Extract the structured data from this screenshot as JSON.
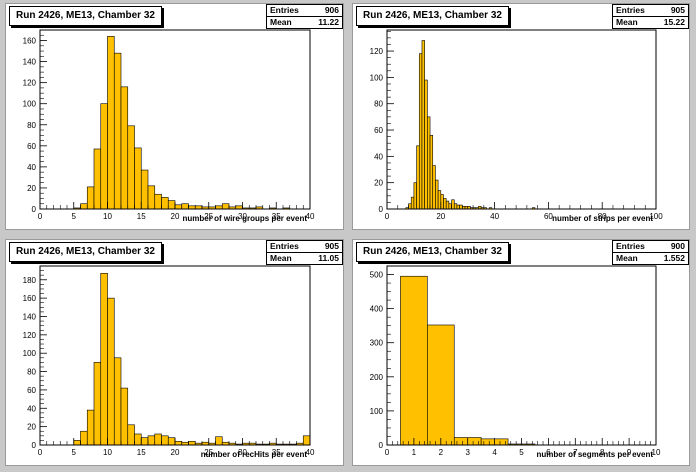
{
  "chart_data": [
    {
      "type": "bar",
      "title": "Run 2426, ME13, Chamber 32",
      "xlabel": "number of wire groups per event",
      "stats": {
        "entries_label": "Entries",
        "entries": "906",
        "mean_label": "Mean",
        "mean": "11.22"
      },
      "xlim": [
        0,
        40
      ],
      "ylim": [
        0,
        170
      ],
      "xticks": [
        0,
        5,
        10,
        15,
        20,
        25,
        30,
        35,
        40
      ],
      "yticks": [
        0,
        20,
        40,
        60,
        80,
        100,
        120,
        140,
        160
      ],
      "bin_start": 0,
      "bin_width": 1,
      "fill": "#ffc000",
      "values": [
        0,
        0,
        0,
        0,
        0,
        1,
        5,
        21,
        57,
        100,
        164,
        148,
        116,
        79,
        58,
        37,
        22,
        14,
        11,
        8,
        4,
        5,
        3,
        3,
        2,
        2,
        3,
        5,
        2,
        3,
        1,
        1,
        2,
        0,
        1,
        0,
        1,
        0,
        0,
        0
      ]
    },
    {
      "type": "bar",
      "title": "Run 2426, ME13, Chamber 32",
      "xlabel": "number of strips per event",
      "stats": {
        "entries_label": "Entries",
        "entries": "905",
        "mean_label": "Mean",
        "mean": "15.22"
      },
      "xlim": [
        0,
        100
      ],
      "ylim": [
        0,
        136
      ],
      "xticks": [
        0,
        20,
        40,
        60,
        80,
        100
      ],
      "yticks": [
        0,
        20,
        40,
        60,
        80,
        100,
        120
      ],
      "bin_start": 0,
      "bin_width": 1,
      "fill": "#ffc000",
      "values": [
        0,
        0,
        0,
        0,
        0,
        0,
        0,
        1,
        4,
        9,
        20,
        48,
        118,
        128,
        98,
        70,
        56,
        33,
        22,
        14,
        11,
        8,
        6,
        4,
        7,
        4,
        3,
        3,
        2,
        2,
        2,
        1,
        1,
        1,
        2,
        1,
        1,
        0,
        1,
        0,
        0,
        0,
        0,
        0,
        0,
        0,
        0,
        0,
        0,
        0,
        0,
        0,
        0,
        0,
        1,
        0,
        0,
        0,
        0,
        0,
        0,
        0,
        0,
        0,
        0,
        0,
        0,
        0,
        0,
        0,
        0,
        0,
        0,
        0,
        0,
        0,
        0,
        0,
        0,
        0,
        0,
        0,
        0,
        0,
        0,
        0,
        0,
        0,
        0,
        0,
        0,
        0,
        0,
        0,
        0,
        0,
        0,
        0,
        0,
        0
      ]
    },
    {
      "type": "bar",
      "title": "Run 2426, ME13, Chamber 32",
      "xlabel": "number of recHits per event",
      "stats": {
        "entries_label": "Entries",
        "entries": "905",
        "mean_label": "Mean",
        "mean": "11.05"
      },
      "xlim": [
        0,
        40
      ],
      "ylim": [
        0,
        195
      ],
      "xticks": [
        0,
        5,
        10,
        15,
        20,
        25,
        30,
        35,
        40
      ],
      "yticks": [
        0,
        20,
        40,
        60,
        80,
        100,
        120,
        140,
        160,
        180
      ],
      "bin_start": 0,
      "bin_width": 1,
      "fill": "#ffc000",
      "values": [
        0,
        0,
        0,
        0,
        0,
        5,
        15,
        38,
        90,
        187,
        160,
        95,
        62,
        22,
        12,
        8,
        10,
        12,
        10,
        8,
        4,
        3,
        4,
        2,
        3,
        2,
        9,
        3,
        2,
        1,
        2,
        2,
        1,
        1,
        2,
        1,
        1,
        1,
        2,
        10
      ]
    },
    {
      "type": "bar",
      "title": "Run 2426, ME13, Chamber 32",
      "xlabel": "number of segments per event",
      "stats": {
        "entries_label": "Entries",
        "entries": "900",
        "mean_label": "Mean",
        "mean": "1.552"
      },
      "xlim": [
        0,
        10
      ],
      "ylim": [
        0,
        525
      ],
      "xticks": [
        0,
        1,
        2,
        3,
        4,
        5,
        6,
        7,
        8,
        9,
        10
      ],
      "yticks": [
        0,
        100,
        200,
        300,
        400,
        500
      ],
      "bin_start": 0.5,
      "bin_width": 1,
      "fill": "#ffc000",
      "values": [
        495,
        352,
        22,
        18,
        3,
        0,
        0,
        0,
        0,
        0
      ]
    }
  ]
}
